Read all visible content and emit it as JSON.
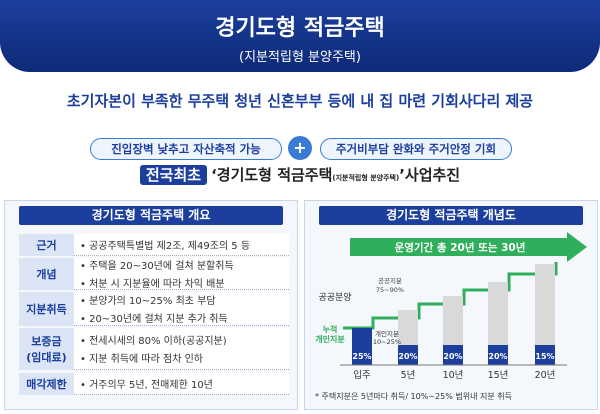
{
  "header": {
    "title": "경기도형 적금주택",
    "subtitle": "(지분적립형 분양주택)"
  },
  "tagline": "초기자본이 부족한 무주택 청년 신혼부부 등에 내 집 마련 기회사다리 제공",
  "benefits": [
    "진입장벽 낮추고 자산축적 가능",
    "주거비부담 완화와 주거안정 기회"
  ],
  "headline": {
    "badge": "전국최초",
    "text": "‘경기도형 적금주택",
    "note": "(지분적립형 분양주택)",
    "suffix": "’사업추진"
  },
  "overview": {
    "title": "경기도형 적금주택 개요",
    "rows": [
      {
        "label": "근거",
        "items": [
          "• 공공주택특별법 제2조, 제49조의 5 등"
        ]
      },
      {
        "label": "개념",
        "items": [
          "• 주택을 20~30년에 걸쳐 분할취득",
          "• 처분 시 지분율에 따라 차익 배분"
        ]
      },
      {
        "label": "지분취득",
        "items": [
          "• 분양가의 10~25% 최초 부담",
          "• 20~30년에 걸쳐 지분 추가 취득"
        ]
      },
      {
        "label": "보증금\n(임대료)",
        "items": [
          "• 전세시세의 80% 이하(공공지분)",
          "• 지분 취득에 따라 점차 인하"
        ]
      },
      {
        "label": "매각제한",
        "items": [
          "• 거주의무 5년, 전매제한 10년"
        ]
      }
    ]
  },
  "concept": {
    "title": "경기도형 적금주택 개념도",
    "period": "운영기간 총 20년 또는 30년",
    "public_sale": "공공분양",
    "public_share": [
      "공공지분",
      "75~90%"
    ],
    "cumulative": [
      "누적",
      "개인지분"
    ],
    "private_share": [
      "개인지분",
      "10~25%"
    ],
    "stages": [
      {
        "label": "입주",
        "share": "25%"
      },
      {
        "label": "5년",
        "share": "20%"
      },
      {
        "label": "10년",
        "share": "20%"
      },
      {
        "label": "15년",
        "share": "20%"
      },
      {
        "label": "20년",
        "share": "15%"
      }
    ],
    "footnote": "* 주택지분은 5년마다 취득/ 10%~25% 범위내 지분 취득"
  }
}
